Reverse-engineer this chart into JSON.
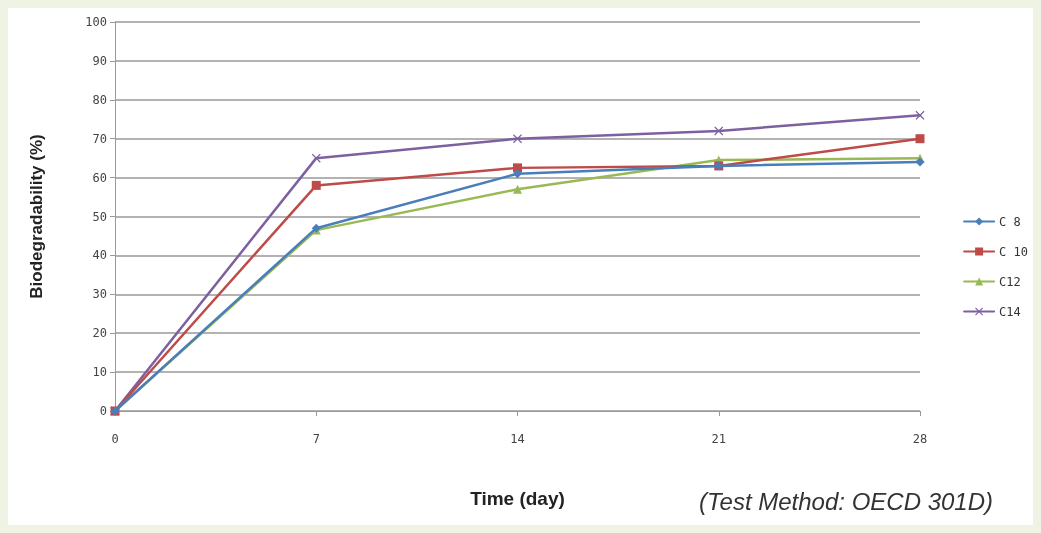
{
  "chart_data": {
    "type": "line",
    "xlabel": "Time (day)",
    "ylabel": "Biodegradability (%)",
    "annotations": [
      "(Test Method: OECD 301D)"
    ],
    "x": [
      0,
      7,
      14,
      21,
      28
    ],
    "series": [
      {
        "name": "C 8",
        "color": "#4a7ebb",
        "marker": "diamond",
        "values": [
          0,
          47,
          61,
          63,
          64
        ]
      },
      {
        "name": "C 10",
        "color": "#be4b48",
        "marker": "square",
        "values": [
          0,
          58,
          62.5,
          63,
          70
        ]
      },
      {
        "name": "C12",
        "color": "#98b954",
        "marker": "triangle",
        "values": [
          0,
          46.5,
          57,
          64.5,
          65
        ]
      },
      {
        "name": "C14",
        "color": "#7d60a0",
        "marker": "cross",
        "values": [
          0,
          65,
          70,
          72,
          76
        ]
      }
    ],
    "xlim": [
      0,
      28
    ],
    "xticks": [
      0,
      7,
      14,
      21,
      28
    ],
    "ylim": [
      0,
      100
    ],
    "yticks": [
      0,
      10,
      20,
      30,
      40,
      50,
      60,
      70,
      80,
      90,
      100
    ],
    "grid": "y",
    "legend": "right"
  }
}
